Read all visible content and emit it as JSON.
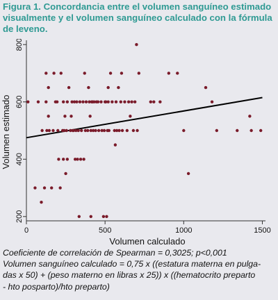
{
  "title": "Figura 1. Concordancia entre el volumen sanguíneo estimado visualmente y el volumen sanguíneo calculado con la fórmula de leveno.",
  "caption": {
    "line1": "Coeficiente de correlación de Spearman = 0,3025; p<0,001",
    "line2": "Volumen sanguíneo calculado =       0,75 x ((estatura materna en pulga-",
    "line3": "das x 50) + (peso materno en libras x 25)) x  ((hematocrito preparto",
    "line4": "- hto posparto)/hto preparto)"
  },
  "colors": {
    "points": "#7a1b2a",
    "title": "#2f9a93",
    "line": "#000000",
    "background": "#e9e9ee"
  },
  "chart_data": {
    "type": "scatter",
    "title": "",
    "xlabel": "Volumen calculado",
    "ylabel": "Volumen estimado",
    "xlim": [
      0,
      1520
    ],
    "ylim": [
      185,
      815
    ],
    "xticks": [
      "0",
      "500",
      "1000",
      "1500"
    ],
    "yticks": [
      "200",
      "400",
      "600",
      "800"
    ],
    "xtick_values": [
      0,
      500,
      1000,
      1500
    ],
    "ytick_values": [
      200,
      400,
      600,
      800
    ],
    "grid": false,
    "points": [
      [
        10,
        600
      ],
      [
        55,
        300
      ],
      [
        75,
        600
      ],
      [
        95,
        250
      ],
      [
        100,
        500
      ],
      [
        115,
        300
      ],
      [
        125,
        700
      ],
      [
        125,
        600
      ],
      [
        130,
        500
      ],
      [
        140,
        550
      ],
      [
        140,
        650
      ],
      [
        145,
        500
      ],
      [
        160,
        300
      ],
      [
        170,
        500
      ],
      [
        175,
        700
      ],
      [
        185,
        600
      ],
      [
        195,
        600
      ],
      [
        200,
        500
      ],
      [
        205,
        400
      ],
      [
        215,
        300
      ],
      [
        220,
        700
      ],
      [
        230,
        500
      ],
      [
        235,
        600
      ],
      [
        235,
        400
      ],
      [
        240,
        500
      ],
      [
        245,
        550
      ],
      [
        250,
        350
      ],
      [
        255,
        500
      ],
      [
        260,
        600
      ],
      [
        260,
        400
      ],
      [
        270,
        650
      ],
      [
        280,
        500
      ],
      [
        285,
        550
      ],
      [
        290,
        600
      ],
      [
        295,
        500
      ],
      [
        300,
        500
      ],
      [
        305,
        600
      ],
      [
        310,
        400
      ],
      [
        315,
        500
      ],
      [
        320,
        600
      ],
      [
        325,
        400
      ],
      [
        330,
        500
      ],
      [
        335,
        200
      ],
      [
        340,
        600
      ],
      [
        345,
        400
      ],
      [
        350,
        500
      ],
      [
        360,
        600
      ],
      [
        365,
        400
      ],
      [
        370,
        700
      ],
      [
        375,
        500
      ],
      [
        380,
        600
      ],
      [
        390,
        500
      ],
      [
        395,
        650
      ],
      [
        400,
        600
      ],
      [
        405,
        550
      ],
      [
        410,
        200
      ],
      [
        410,
        500
      ],
      [
        415,
        600
      ],
      [
        420,
        600
      ],
      [
        425,
        500
      ],
      [
        430,
        600
      ],
      [
        440,
        500
      ],
      [
        445,
        600
      ],
      [
        455,
        600
      ],
      [
        460,
        500
      ],
      [
        475,
        600
      ],
      [
        480,
        500
      ],
      [
        490,
        200
      ],
      [
        495,
        500
      ],
      [
        500,
        600
      ],
      [
        505,
        600
      ],
      [
        510,
        200
      ],
      [
        515,
        500
      ],
      [
        520,
        650
      ],
      [
        520,
        600
      ],
      [
        525,
        500
      ],
      [
        535,
        700
      ],
      [
        545,
        600
      ],
      [
        560,
        500
      ],
      [
        565,
        450
      ],
      [
        570,
        600
      ],
      [
        575,
        500
      ],
      [
        585,
        650
      ],
      [
        590,
        500
      ],
      [
        600,
        600
      ],
      [
        605,
        700
      ],
      [
        610,
        500
      ],
      [
        625,
        600
      ],
      [
        640,
        500
      ],
      [
        650,
        600
      ],
      [
        660,
        550
      ],
      [
        670,
        600
      ],
      [
        680,
        500
      ],
      [
        690,
        600
      ],
      [
        700,
        800
      ],
      [
        705,
        500
      ],
      [
        715,
        700
      ],
      [
        790,
        600
      ],
      [
        810,
        600
      ],
      [
        850,
        600
      ],
      [
        905,
        700
      ],
      [
        960,
        700
      ],
      [
        1000,
        500
      ],
      [
        1030,
        350
      ],
      [
        1140,
        650
      ],
      [
        1180,
        600
      ],
      [
        1210,
        500
      ],
      [
        1340,
        500
      ],
      [
        1420,
        550
      ],
      [
        1430,
        500
      ],
      [
        1490,
        500
      ]
    ],
    "fit_line": {
      "x": [
        0,
        1500
      ],
      "y": [
        475,
        615
      ]
    }
  }
}
